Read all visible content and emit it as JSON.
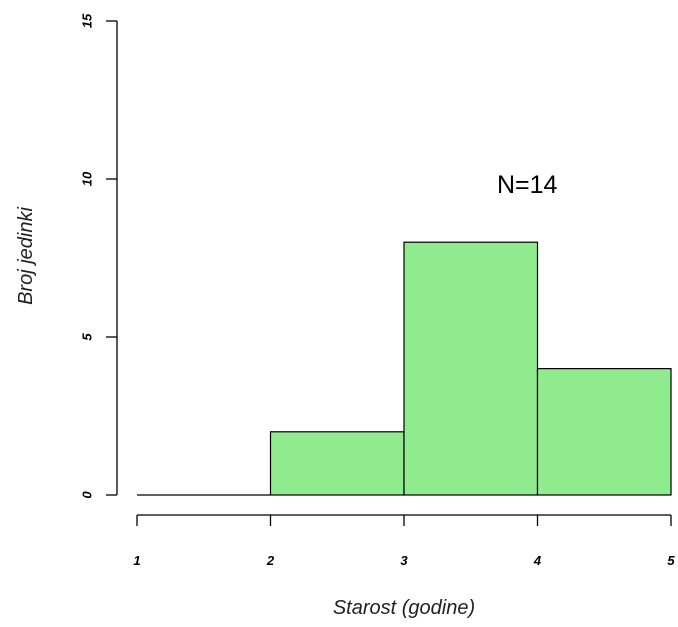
{
  "chart_data": {
    "type": "bar",
    "title": "",
    "xlabel": "Starost (godine)",
    "ylabel": "Broj jedinki",
    "annotation": "N=14",
    "bins": [
      {
        "x0": 1,
        "x1": 2,
        "value": 0
      },
      {
        "x0": 2,
        "x1": 3,
        "value": 2
      },
      {
        "x0": 3,
        "x1": 4,
        "value": 8
      },
      {
        "x0": 4,
        "x1": 5,
        "value": 4
      }
    ],
    "xlim": [
      1,
      5
    ],
    "ylim": [
      0,
      15
    ],
    "x_ticks": [
      1,
      2,
      3,
      4,
      5
    ],
    "y_ticks": [
      0,
      5,
      10,
      15
    ],
    "bar_color": "#90ea8e",
    "grid": false
  }
}
